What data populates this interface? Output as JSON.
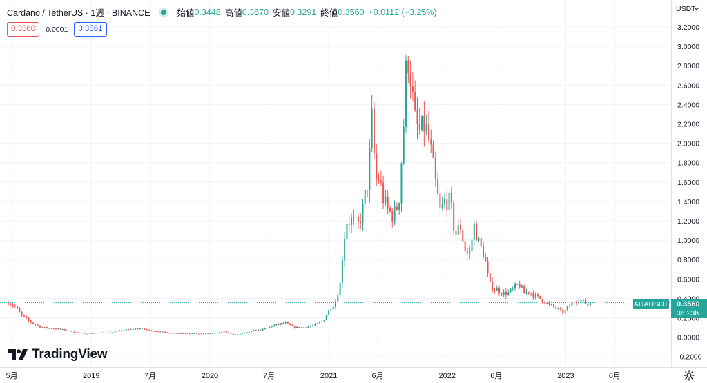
{
  "header": {
    "symbol": "Cardano / TetherUS · 1週 · BINANCE",
    "open_label": "始値",
    "open_value": "0.3448",
    "high_label": "高値",
    "high_value": "0.3870",
    "low_label": "安値",
    "low_value": "0.3291",
    "close_label": "終値",
    "close_value": "0.3560",
    "change": "+0.0112 (+3.25%)"
  },
  "prices": {
    "sell": "0.3560",
    "spread": "0.0001",
    "buy": "0.3561"
  },
  "currency_label": "USDT",
  "price_tag": {
    "ticker": "ADAUSDT",
    "price": "0.3560",
    "countdown": "3d 23h"
  },
  "logo_text": "TradingView",
  "colors": {
    "up": "#26a69a",
    "down": "#ef5350",
    "grid": "#f0f3fa",
    "text": "#131722"
  },
  "chart_data": {
    "type": "candlestick",
    "interval": "1週",
    "exchange": "BINANCE",
    "ylim": [
      -0.25,
      3.35
    ],
    "y_ticks": [
      "3.2000",
      "3.0000",
      "2.8000",
      "2.6000",
      "2.4000",
      "2.2000",
      "2.0000",
      "1.8000",
      "1.6000",
      "1.4000",
      "1.2000",
      "1.0000",
      "0.8000",
      "0.6000",
      "0.4000",
      "0.2000",
      "0.0000",
      "-0.2000"
    ],
    "x_ticks": [
      {
        "label": "5月",
        "date": "2018-05"
      },
      {
        "label": "2019",
        "date": "2019-01"
      },
      {
        "label": "7月",
        "date": "2019-07"
      },
      {
        "label": "2020",
        "date": "2020-01"
      },
      {
        "label": "7月",
        "date": "2020-07"
      },
      {
        "label": "2021",
        "date": "2021-01"
      },
      {
        "label": "6月",
        "date": "2021-06"
      },
      {
        "label": "2022",
        "date": "2022-01"
      },
      {
        "label": "6月",
        "date": "2022-06"
      },
      {
        "label": "2023",
        "date": "2023-01"
      },
      {
        "label": "6月",
        "date": "2023-06"
      }
    ],
    "last_price": 0.356,
    "closes": [
      {
        "date": "2018-04-20",
        "c": 0.36
      },
      {
        "date": "2018-05-10",
        "c": 0.32
      },
      {
        "date": "2018-06-01",
        "c": 0.22
      },
      {
        "date": "2018-07-01",
        "c": 0.15
      },
      {
        "date": "2018-08-01",
        "c": 0.1
      },
      {
        "date": "2018-09-01",
        "c": 0.09
      },
      {
        "date": "2018-10-01",
        "c": 0.08
      },
      {
        "date": "2018-11-15",
        "c": 0.05
      },
      {
        "date": "2018-12-15",
        "c": 0.035
      },
      {
        "date": "2019-01-15",
        "c": 0.045
      },
      {
        "date": "2019-03-01",
        "c": 0.05
      },
      {
        "date": "2019-04-01",
        "c": 0.07
      },
      {
        "date": "2019-05-01",
        "c": 0.08
      },
      {
        "date": "2019-06-01",
        "c": 0.09
      },
      {
        "date": "2019-07-01",
        "c": 0.07
      },
      {
        "date": "2019-08-01",
        "c": 0.055
      },
      {
        "date": "2019-09-01",
        "c": 0.045
      },
      {
        "date": "2019-10-15",
        "c": 0.04
      },
      {
        "date": "2019-12-01",
        "c": 0.035
      },
      {
        "date": "2020-01-15",
        "c": 0.04
      },
      {
        "date": "2020-02-15",
        "c": 0.06
      },
      {
        "date": "2020-03-15",
        "c": 0.025
      },
      {
        "date": "2020-04-15",
        "c": 0.04
      },
      {
        "date": "2020-05-15",
        "c": 0.07
      },
      {
        "date": "2020-06-15",
        "c": 0.08
      },
      {
        "date": "2020-07-15",
        "c": 0.12
      },
      {
        "date": "2020-08-20",
        "c": 0.15
      },
      {
        "date": "2020-09-15",
        "c": 0.1
      },
      {
        "date": "2020-10-15",
        "c": 0.1
      },
      {
        "date": "2020-11-15",
        "c": 0.12
      },
      {
        "date": "2020-12-15",
        "c": 0.17
      },
      {
        "date": "2021-01-05",
        "c": 0.3
      },
      {
        "date": "2021-01-20",
        "c": 0.35
      },
      {
        "date": "2021-02-05",
        "c": 0.55
      },
      {
        "date": "2021-02-15",
        "c": 0.95
      },
      {
        "date": "2021-02-25",
        "c": 1.2
      },
      {
        "date": "2021-03-15",
        "c": 1.2
      },
      {
        "date": "2021-04-01",
        "c": 1.15
      },
      {
        "date": "2021-04-15",
        "c": 1.3
      },
      {
        "date": "2021-05-01",
        "c": 1.6
      },
      {
        "date": "2021-05-10",
        "c": 2.0
      },
      {
        "date": "2021-05-15",
        "c": 2.3
      },
      {
        "date": "2021-05-25",
        "c": 1.6
      },
      {
        "date": "2021-06-05",
        "c": 1.65
      },
      {
        "date": "2021-06-20",
        "c": 1.4
      },
      {
        "date": "2021-07-05",
        "c": 1.3
      },
      {
        "date": "2021-07-20",
        "c": 1.25
      },
      {
        "date": "2021-08-05",
        "c": 1.4
      },
      {
        "date": "2021-08-20",
        "c": 2.2
      },
      {
        "date": "2021-08-28",
        "c": 2.8
      },
      {
        "date": "2021-09-05",
        "c": 2.9
      },
      {
        "date": "2021-09-15",
        "c": 2.5
      },
      {
        "date": "2021-09-25",
        "c": 2.2
      },
      {
        "date": "2021-10-10",
        "c": 2.1
      },
      {
        "date": "2021-10-25",
        "c": 2.2
      },
      {
        "date": "2021-11-10",
        "c": 1.95
      },
      {
        "date": "2021-11-25",
        "c": 1.6
      },
      {
        "date": "2021-12-10",
        "c": 1.3
      },
      {
        "date": "2021-12-25",
        "c": 1.4
      },
      {
        "date": "2022-01-10",
        "c": 1.4
      },
      {
        "date": "2022-01-25",
        "c": 1.05
      },
      {
        "date": "2022-02-10",
        "c": 1.15
      },
      {
        "date": "2022-02-25",
        "c": 0.9
      },
      {
        "date": "2022-03-10",
        "c": 0.85
      },
      {
        "date": "2022-03-25",
        "c": 1.15
      },
      {
        "date": "2022-04-10",
        "c": 0.95
      },
      {
        "date": "2022-04-25",
        "c": 0.85
      },
      {
        "date": "2022-05-10",
        "c": 0.55
      },
      {
        "date": "2022-05-25",
        "c": 0.5
      },
      {
        "date": "2022-06-10",
        "c": 0.48
      },
      {
        "date": "2022-06-25",
        "c": 0.45
      },
      {
        "date": "2022-07-10",
        "c": 0.46
      },
      {
        "date": "2022-07-25",
        "c": 0.5
      },
      {
        "date": "2022-08-10",
        "c": 0.55
      },
      {
        "date": "2022-08-25",
        "c": 0.45
      },
      {
        "date": "2022-09-10",
        "c": 0.48
      },
      {
        "date": "2022-09-25",
        "c": 0.43
      },
      {
        "date": "2022-10-10",
        "c": 0.4
      },
      {
        "date": "2022-10-25",
        "c": 0.38
      },
      {
        "date": "2022-11-10",
        "c": 0.33
      },
      {
        "date": "2022-11-25",
        "c": 0.31
      },
      {
        "date": "2022-12-10",
        "c": 0.28
      },
      {
        "date": "2022-12-25",
        "c": 0.25
      },
      {
        "date": "2023-01-10",
        "c": 0.32
      },
      {
        "date": "2023-01-25",
        "c": 0.37
      },
      {
        "date": "2023-02-10",
        "c": 0.39
      },
      {
        "date": "2023-02-25",
        "c": 0.36
      },
      {
        "date": "2023-03-10",
        "c": 0.33
      },
      {
        "date": "2023-03-20",
        "c": 0.356
      }
    ]
  }
}
